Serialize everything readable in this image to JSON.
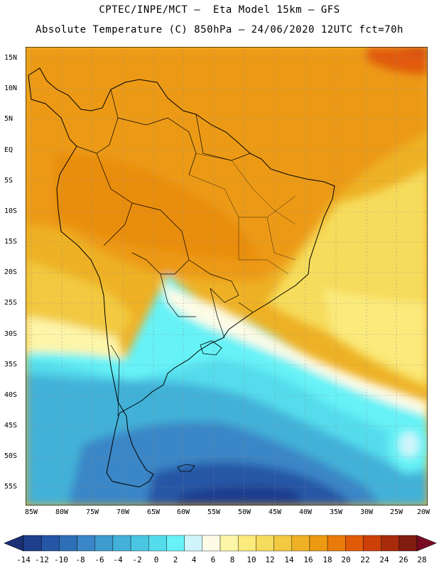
{
  "header": {
    "title_line1": "CPTEC/INPE/MCT –  Eta Model 15km – GFS",
    "title_line2": "Absolute Temperature (C) 850hPa – 24/06/2020 12UTC fct=70h"
  },
  "map": {
    "lat_labels": [
      "15N",
      "10N",
      "5N",
      "EQ",
      "5S",
      "10S",
      "15S",
      "20S",
      "25S",
      "30S",
      "35S",
      "40S",
      "45S",
      "50S",
      "55S"
    ],
    "lon_labels": [
      "85W",
      "80W",
      "75W",
      "70W",
      "65W",
      "60W",
      "55W",
      "50W",
      "45W",
      "40W",
      "35W",
      "30W",
      "25W",
      "20W"
    ]
  },
  "colorbar": {
    "labels": [
      "-14",
      "-12",
      "-10",
      "-8",
      "-6",
      "-4",
      "-2",
      "0",
      "2",
      "4",
      "6",
      "8",
      "10",
      "12",
      "14",
      "16",
      "18",
      "20",
      "22",
      "24",
      "26",
      "28"
    ],
    "colors": [
      "#1f3e8c",
      "#2556a6",
      "#2f6fb8",
      "#3a86c6",
      "#3e9bcf",
      "#43b1d8",
      "#4ac6e2",
      "#55dcec",
      "#66f2f7",
      "#cff5fb",
      "#fdfbe6",
      "#fdf5a8",
      "#fbea7c",
      "#f6dc5c",
      "#f2c941",
      "#eeb125",
      "#ec9a12",
      "#e97b0a",
      "#e15a08",
      "#cc4008",
      "#a82b0c",
      "#801c10"
    ],
    "under_color": "#1a2f75",
    "over_color": "#7a0a22"
  }
}
